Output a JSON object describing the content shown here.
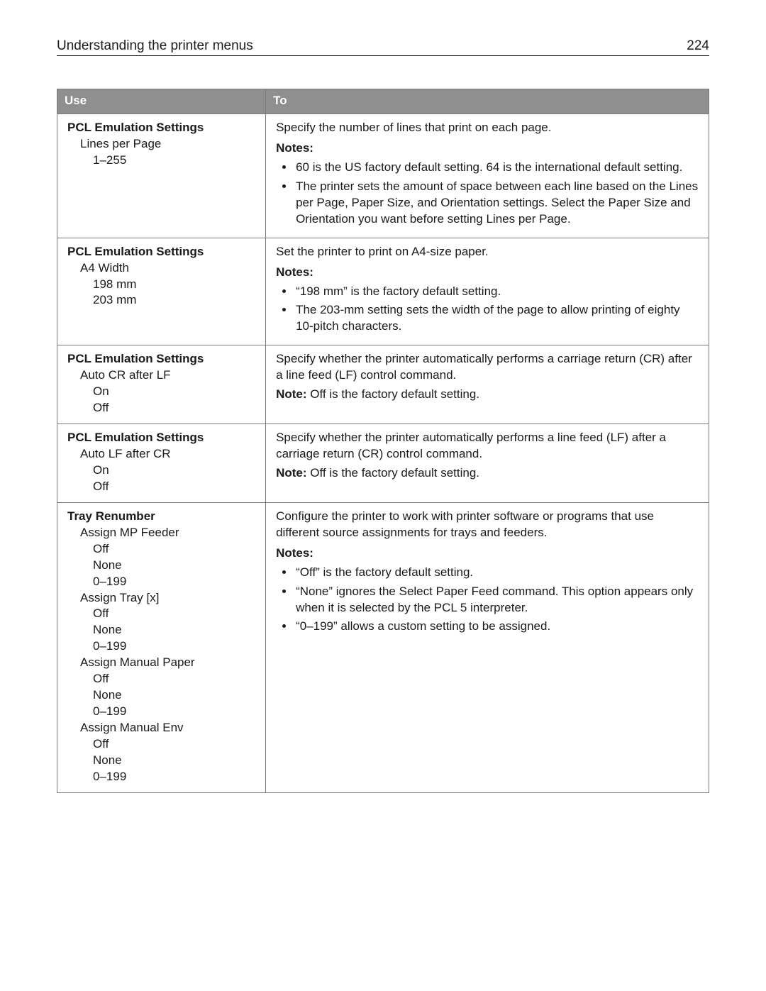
{
  "header": {
    "title": "Understanding the printer menus",
    "page_number": "224"
  },
  "table": {
    "columns": [
      "Use",
      "To"
    ],
    "rows": [
      {
        "use": {
          "title": "PCL Emulation Settings",
          "items": [
            {
              "label": "Lines per Page",
              "level": 1
            },
            {
              "label": "1–255",
              "level": 2
            }
          ]
        },
        "to": {
          "desc": "Specify the number of lines that print on each page.",
          "notes_label": "Notes:",
          "bullets": [
            "60 is the US factory default setting. 64 is the international default setting.",
            "The printer sets the amount of space between each line based on the Lines per Page, Paper Size, and Orientation settings. Select the Paper Size and Orientation you want before setting Lines per Page."
          ]
        }
      },
      {
        "use": {
          "title": "PCL Emulation Settings",
          "items": [
            {
              "label": "A4 Width",
              "level": 1
            },
            {
              "label": "198 mm",
              "level": 2
            },
            {
              "label": "203 mm",
              "level": 2
            }
          ]
        },
        "to": {
          "desc": "Set the printer to print on A4‑size paper.",
          "notes_label": "Notes:",
          "bullets": [
            "“198 mm” is the factory default setting.",
            "The 203‑mm setting sets the width of the page to allow printing of eighty 10‑pitch characters."
          ]
        }
      },
      {
        "use": {
          "title": "PCL Emulation Settings",
          "items": [
            {
              "label": "Auto CR after LF",
              "level": 1
            },
            {
              "label": "On",
              "level": 2
            },
            {
              "label": "Off",
              "level": 2
            }
          ]
        },
        "to": {
          "desc": "Specify whether the printer automatically performs a carriage return (CR) after a line feed (LF) control command.",
          "note_label": "Note:",
          "note_text": " Off is the factory default setting."
        }
      },
      {
        "use": {
          "title": "PCL Emulation Settings",
          "items": [
            {
              "label": "Auto LF after CR",
              "level": 1
            },
            {
              "label": "On",
              "level": 2
            },
            {
              "label": "Off",
              "level": 2
            }
          ]
        },
        "to": {
          "desc": "Specify whether the printer automatically performs a line feed (LF) after a carriage return (CR) control command.",
          "note_label": "Note:",
          "note_text": " Off is the factory default setting."
        }
      },
      {
        "use": {
          "title": "Tray Renumber",
          "items": [
            {
              "label": "Assign MP Feeder",
              "level": 1
            },
            {
              "label": "Off",
              "level": 2
            },
            {
              "label": "None",
              "level": 2
            },
            {
              "label": "0–199",
              "level": 2
            },
            {
              "label": "Assign Tray [x]",
              "level": 1
            },
            {
              "label": "Off",
              "level": 2
            },
            {
              "label": "None",
              "level": 2
            },
            {
              "label": "0–199",
              "level": 2
            },
            {
              "label": "Assign Manual Paper",
              "level": 1
            },
            {
              "label": "Off",
              "level": 2
            },
            {
              "label": "None",
              "level": 2
            },
            {
              "label": "0–199",
              "level": 2
            },
            {
              "label": "Assign Manual Env",
              "level": 1
            },
            {
              "label": "Off",
              "level": 2
            },
            {
              "label": "None",
              "level": 2
            },
            {
              "label": "0–199",
              "level": 2
            }
          ]
        },
        "to": {
          "desc": "Configure the printer to work with printer software or programs that use different source assignments for trays and feeders.",
          "notes_label": "Notes:",
          "bullets": [
            "“Off” is the factory default setting.",
            "“None” ignores the Select Paper Feed command. This option appears only when it is selected by the PCL 5 interpreter.",
            "“0–199” allows a custom setting to be assigned."
          ]
        }
      }
    ]
  }
}
